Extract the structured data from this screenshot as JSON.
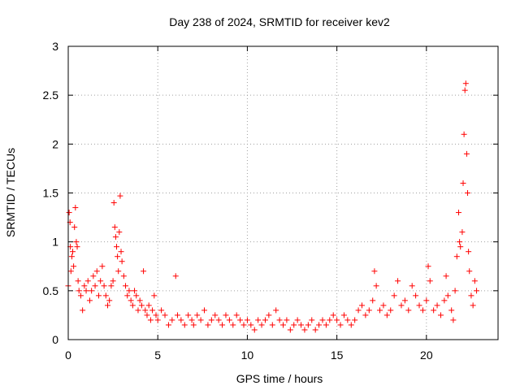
{
  "chart_data": {
    "type": "scatter",
    "title": "Day 238 of 2024, SRMTID for receiver kev2",
    "xlabel": "GPS time / hours",
    "ylabel": "SRMTID / TECUs",
    "xlim": [
      0,
      24
    ],
    "ylim": [
      0,
      3
    ],
    "xticks": [
      0,
      5,
      10,
      15,
      20
    ],
    "xtick_labels": [
      "0",
      "5",
      "10",
      "15",
      "20"
    ],
    "yticks": [
      0,
      0.5,
      1,
      1.5,
      2,
      2.5,
      3
    ],
    "ytick_labels": [
      "0",
      "0.5",
      "1",
      "1.5",
      "2",
      "2.5",
      "3"
    ],
    "grid": true,
    "marker": "+",
    "series": [
      {
        "name": "SRMTID",
        "color": "#ff0000",
        "points": [
          [
            0.0,
            0.55
          ],
          [
            0.05,
            1.3
          ],
          [
            0.1,
            1.2
          ],
          [
            0.12,
            0.95
          ],
          [
            0.15,
            0.7
          ],
          [
            0.2,
            0.85
          ],
          [
            0.25,
            0.9
          ],
          [
            0.3,
            0.75
          ],
          [
            0.35,
            1.15
          ],
          [
            0.4,
            1.35
          ],
          [
            0.45,
            1.0
          ],
          [
            0.5,
            0.95
          ],
          [
            0.55,
            0.6
          ],
          [
            0.6,
            0.5
          ],
          [
            0.7,
            0.45
          ],
          [
            0.8,
            0.3
          ],
          [
            0.9,
            0.55
          ],
          [
            1.0,
            0.5
          ],
          [
            1.1,
            0.6
          ],
          [
            1.2,
            0.4
          ],
          [
            1.3,
            0.5
          ],
          [
            1.4,
            0.65
          ],
          [
            1.5,
            0.55
          ],
          [
            1.6,
            0.7
          ],
          [
            1.7,
            0.45
          ],
          [
            1.8,
            0.6
          ],
          [
            1.9,
            0.75
          ],
          [
            2.0,
            0.55
          ],
          [
            2.1,
            0.45
          ],
          [
            2.2,
            0.35
          ],
          [
            2.3,
            0.4
          ],
          [
            2.4,
            0.55
          ],
          [
            2.5,
            0.6
          ],
          [
            2.55,
            1.4
          ],
          [
            2.6,
            1.15
          ],
          [
            2.65,
            1.05
          ],
          [
            2.7,
            0.95
          ],
          [
            2.75,
            0.85
          ],
          [
            2.8,
            0.7
          ],
          [
            2.85,
            1.1
          ],
          [
            2.9,
            1.47
          ],
          [
            2.95,
            0.9
          ],
          [
            3.0,
            0.8
          ],
          [
            3.1,
            0.65
          ],
          [
            3.2,
            0.55
          ],
          [
            3.3,
            0.45
          ],
          [
            3.4,
            0.5
          ],
          [
            3.5,
            0.4
          ],
          [
            3.6,
            0.35
          ],
          [
            3.7,
            0.5
          ],
          [
            3.8,
            0.45
          ],
          [
            3.9,
            0.3
          ],
          [
            4.0,
            0.4
          ],
          [
            4.1,
            0.35
          ],
          [
            4.2,
            0.7
          ],
          [
            4.3,
            0.3
          ],
          [
            4.4,
            0.25
          ],
          [
            4.5,
            0.35
          ],
          [
            4.6,
            0.2
          ],
          [
            4.7,
            0.3
          ],
          [
            4.8,
            0.45
          ],
          [
            4.9,
            0.25
          ],
          [
            5.0,
            0.2
          ],
          [
            5.2,
            0.3
          ],
          [
            5.4,
            0.25
          ],
          [
            5.6,
            0.15
          ],
          [
            5.8,
            0.2
          ],
          [
            6.0,
            0.65
          ],
          [
            6.1,
            0.25
          ],
          [
            6.3,
            0.2
          ],
          [
            6.5,
            0.15
          ],
          [
            6.7,
            0.25
          ],
          [
            6.9,
            0.2
          ],
          [
            7.0,
            0.15
          ],
          [
            7.2,
            0.25
          ],
          [
            7.4,
            0.2
          ],
          [
            7.6,
            0.3
          ],
          [
            7.8,
            0.15
          ],
          [
            8.0,
            0.2
          ],
          [
            8.2,
            0.25
          ],
          [
            8.4,
            0.2
          ],
          [
            8.6,
            0.15
          ],
          [
            8.8,
            0.25
          ],
          [
            9.0,
            0.2
          ],
          [
            9.2,
            0.15
          ],
          [
            9.4,
            0.25
          ],
          [
            9.6,
            0.2
          ],
          [
            9.8,
            0.15
          ],
          [
            10.0,
            0.2
          ],
          [
            10.2,
            0.15
          ],
          [
            10.4,
            0.1
          ],
          [
            10.6,
            0.2
          ],
          [
            10.8,
            0.15
          ],
          [
            11.0,
            0.2
          ],
          [
            11.2,
            0.25
          ],
          [
            11.4,
            0.15
          ],
          [
            11.6,
            0.3
          ],
          [
            11.8,
            0.2
          ],
          [
            12.0,
            0.15
          ],
          [
            12.2,
            0.2
          ],
          [
            12.4,
            0.1
          ],
          [
            12.6,
            0.15
          ],
          [
            12.8,
            0.2
          ],
          [
            13.0,
            0.15
          ],
          [
            13.2,
            0.1
          ],
          [
            13.4,
            0.15
          ],
          [
            13.6,
            0.2
          ],
          [
            13.8,
            0.1
          ],
          [
            14.0,
            0.15
          ],
          [
            14.2,
            0.2
          ],
          [
            14.4,
            0.15
          ],
          [
            14.6,
            0.2
          ],
          [
            14.8,
            0.25
          ],
          [
            15.0,
            0.2
          ],
          [
            15.2,
            0.15
          ],
          [
            15.4,
            0.25
          ],
          [
            15.6,
            0.2
          ],
          [
            15.8,
            0.15
          ],
          [
            16.0,
            0.2
          ],
          [
            16.2,
            0.3
          ],
          [
            16.4,
            0.35
          ],
          [
            16.6,
            0.25
          ],
          [
            16.8,
            0.3
          ],
          [
            17.0,
            0.4
          ],
          [
            17.1,
            0.7
          ],
          [
            17.2,
            0.55
          ],
          [
            17.4,
            0.3
          ],
          [
            17.6,
            0.35
          ],
          [
            17.8,
            0.25
          ],
          [
            18.0,
            0.3
          ],
          [
            18.2,
            0.45
          ],
          [
            18.4,
            0.6
          ],
          [
            18.6,
            0.35
          ],
          [
            18.8,
            0.4
          ],
          [
            19.0,
            0.3
          ],
          [
            19.2,
            0.55
          ],
          [
            19.4,
            0.45
          ],
          [
            19.6,
            0.35
          ],
          [
            19.8,
            0.3
          ],
          [
            20.0,
            0.4
          ],
          [
            20.1,
            0.75
          ],
          [
            20.2,
            0.6
          ],
          [
            20.4,
            0.3
          ],
          [
            20.6,
            0.35
          ],
          [
            20.8,
            0.25
          ],
          [
            21.0,
            0.4
          ],
          [
            21.1,
            0.65
          ],
          [
            21.2,
            0.45
          ],
          [
            21.4,
            0.3
          ],
          [
            21.5,
            0.2
          ],
          [
            21.6,
            0.5
          ],
          [
            21.7,
            0.85
          ],
          [
            21.8,
            1.3
          ],
          [
            21.85,
            1.0
          ],
          [
            21.9,
            0.95
          ],
          [
            22.0,
            1.1
          ],
          [
            22.05,
            1.6
          ],
          [
            22.1,
            2.1
          ],
          [
            22.15,
            2.55
          ],
          [
            22.2,
            2.62
          ],
          [
            22.25,
            1.9
          ],
          [
            22.3,
            1.5
          ],
          [
            22.35,
            0.9
          ],
          [
            22.4,
            0.7
          ],
          [
            22.5,
            0.45
          ],
          [
            22.6,
            0.35
          ],
          [
            22.7,
            0.6
          ],
          [
            22.8,
            0.5
          ]
        ]
      }
    ]
  }
}
